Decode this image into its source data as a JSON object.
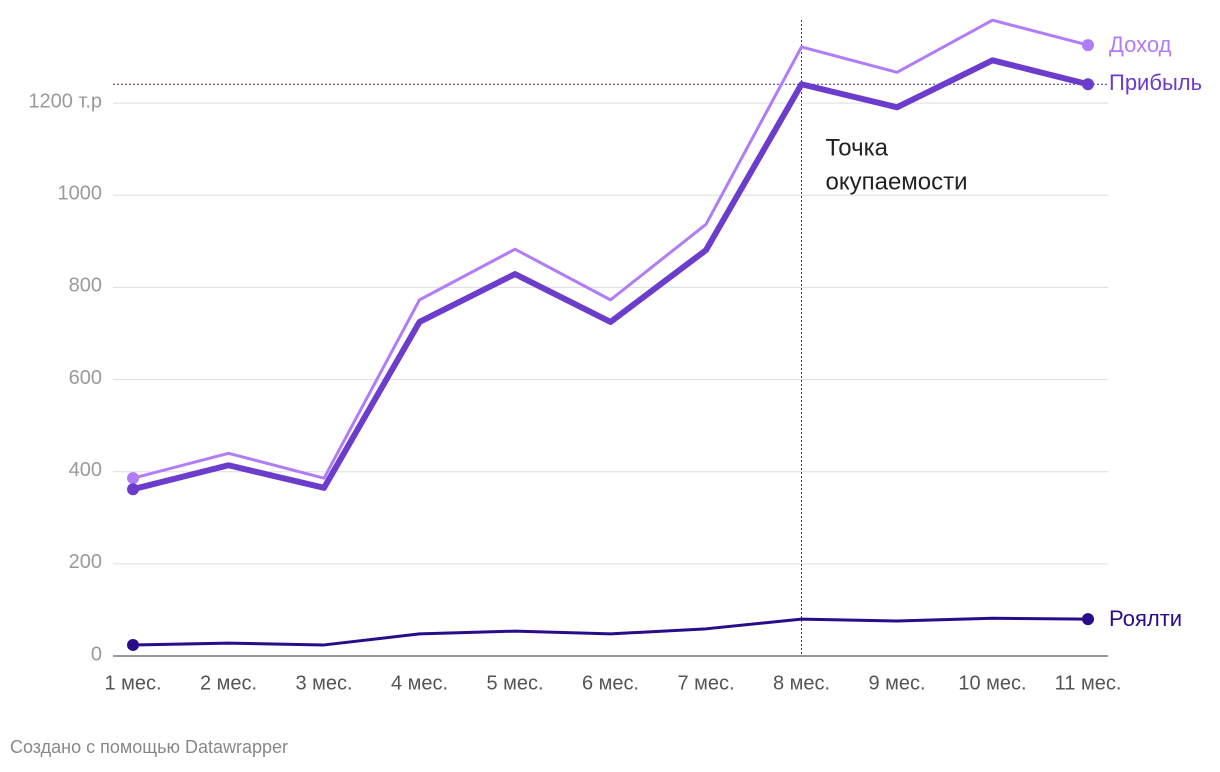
{
  "chart_data": {
    "type": "line",
    "categories": [
      "1 мес.",
      "2 мес.",
      "3 мес.",
      "4 мес.",
      "5 мес.",
      "6 мес.",
      "7 мес.",
      "8 мес.",
      "9 мес.",
      "10 мес.",
      "11 мес."
    ],
    "series": [
      {
        "name": "Доход",
        "color": "#b07cf7",
        "values": [
          386,
          440,
          386,
          773,
          883,
          773,
          937,
          1322,
          1267,
          1380,
          1326
        ]
      },
      {
        "name": "Прибыль",
        "color": "#6c3ccc",
        "values": [
          362,
          414,
          365,
          725,
          829,
          725,
          881,
          1241,
          1191,
          1293,
          1241
        ]
      },
      {
        "name": "Роялти",
        "color": "#2a0c8a",
        "values": [
          24,
          28,
          24,
          48,
          54,
          48,
          59,
          80,
          76,
          82,
          80
        ]
      }
    ],
    "ylim": [
      0,
      1400
    ],
    "yticks": [
      0,
      200,
      400,
      600,
      800,
      1000,
      {
        "value": 1200,
        "label": "1200 т.р"
      }
    ],
    "grid": true,
    "annotation": {
      "lines": [
        "Точка",
        "окупаемости"
      ],
      "x": "8 мес.",
      "y": 1241
    },
    "footer": "Создано с помощью Datawrapper"
  }
}
